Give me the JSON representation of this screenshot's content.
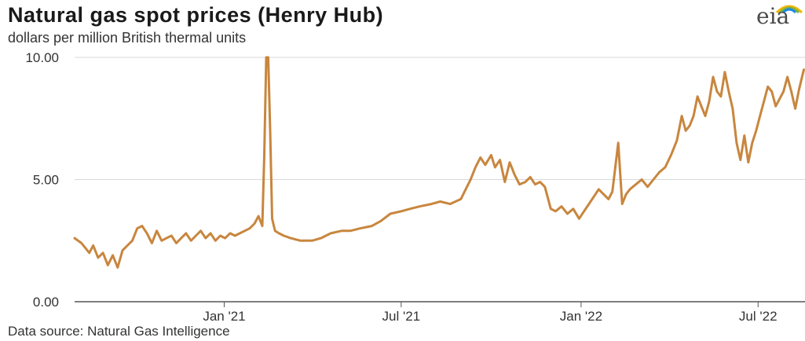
{
  "header": {
    "title": "Natural gas spot prices (Henry Hub)",
    "subtitle": "dollars per million British thermal units",
    "logo_text": "eia"
  },
  "footer": {
    "source": "Data source: Natural Gas Intelligence"
  },
  "colors": {
    "line": "#c8863e",
    "grid": "#d9d9d9",
    "axis": "#555555"
  },
  "chart_data": {
    "type": "line",
    "title": "Natural gas spot prices (Henry Hub)",
    "ylabel": "dollars per million British thermal units",
    "xlabel": "",
    "ylim": [
      0,
      10
    ],
    "xlim": [
      "2020-08-01",
      "2022-08-18"
    ],
    "y_ticks": [
      {
        "value": 0,
        "label": "0.00"
      },
      {
        "value": 5,
        "label": "5.00"
      },
      {
        "value": 10,
        "label": "10.00"
      }
    ],
    "x_ticks": [
      {
        "value": "2021-01-01",
        "label": "Jan '21"
      },
      {
        "value": "2021-07-01",
        "label": "Jul '21"
      },
      {
        "value": "2022-01-01",
        "label": "Jan '22"
      },
      {
        "value": "2022-07-01",
        "label": "Jul '22"
      }
    ],
    "grid": "horizontal",
    "series": [
      {
        "x": [
          "2020-08-01",
          "2020-08-08",
          "2020-08-12",
          "2020-08-16",
          "2020-08-20",
          "2020-08-25",
          "2020-08-30",
          "2020-09-04",
          "2020-09-09",
          "2020-09-14",
          "2020-09-19",
          "2020-09-24",
          "2020-09-29",
          "2020-10-04",
          "2020-10-09",
          "2020-10-14",
          "2020-10-19",
          "2020-10-24",
          "2020-10-29",
          "2020-11-03",
          "2020-11-08",
          "2020-11-13",
          "2020-11-18",
          "2020-11-23",
          "2020-11-28",
          "2020-12-03",
          "2020-12-08",
          "2020-12-13",
          "2020-12-18",
          "2020-12-23",
          "2020-12-28",
          "2021-01-02",
          "2021-01-07",
          "2021-01-12",
          "2021-01-17",
          "2021-01-22",
          "2021-01-27",
          "2021-02-01",
          "2021-02-05",
          "2021-02-09",
          "2021-02-11",
          "2021-02-13",
          "2021-02-15",
          "2021-02-17",
          "2021-02-19",
          "2021-02-22",
          "2021-02-26",
          "2021-03-03",
          "2021-03-10",
          "2021-03-20",
          "2021-04-01",
          "2021-04-10",
          "2021-04-20",
          "2021-05-01",
          "2021-05-10",
          "2021-05-20",
          "2021-06-01",
          "2021-06-10",
          "2021-06-20",
          "2021-07-01",
          "2021-07-10",
          "2021-07-20",
          "2021-08-01",
          "2021-08-10",
          "2021-08-20",
          "2021-08-31",
          "2021-09-05",
          "2021-09-10",
          "2021-09-15",
          "2021-09-20",
          "2021-09-25",
          "2021-10-01",
          "2021-10-05",
          "2021-10-10",
          "2021-10-15",
          "2021-10-20",
          "2021-10-25",
          "2021-10-30",
          "2021-11-05",
          "2021-11-10",
          "2021-11-15",
          "2021-11-20",
          "2021-11-25",
          "2021-12-01",
          "2021-12-06",
          "2021-12-12",
          "2021-12-18",
          "2021-12-24",
          "2021-12-30",
          "2022-01-04",
          "2022-01-09",
          "2022-01-14",
          "2022-01-19",
          "2022-01-24",
          "2022-01-29",
          "2022-02-02",
          "2022-02-08",
          "2022-02-12",
          "2022-02-16",
          "2022-02-20",
          "2022-02-26",
          "2022-03-04",
          "2022-03-10",
          "2022-03-16",
          "2022-03-22",
          "2022-03-28",
          "2022-04-03",
          "2022-04-09",
          "2022-04-14",
          "2022-04-18",
          "2022-04-22",
          "2022-04-26",
          "2022-04-30",
          "2022-05-04",
          "2022-05-08",
          "2022-05-12",
          "2022-05-16",
          "2022-05-20",
          "2022-05-24",
          "2022-05-28",
          "2022-06-01",
          "2022-06-05",
          "2022-06-09",
          "2022-06-13",
          "2022-06-17",
          "2022-06-21",
          "2022-06-25",
          "2022-06-29",
          "2022-07-03",
          "2022-07-07",
          "2022-07-11",
          "2022-07-15",
          "2022-07-19",
          "2022-07-23",
          "2022-07-27",
          "2022-07-31",
          "2022-08-04",
          "2022-08-08",
          "2022-08-12",
          "2022-08-18"
        ],
        "y": [
          2.6,
          2.4,
          2.2,
          2.0,
          2.3,
          1.8,
          2.0,
          1.5,
          1.9,
          1.4,
          2.1,
          2.3,
          2.5,
          3.0,
          3.1,
          2.8,
          2.4,
          2.9,
          2.5,
          2.6,
          2.7,
          2.4,
          2.6,
          2.8,
          2.5,
          2.7,
          2.9,
          2.6,
          2.8,
          2.5,
          2.7,
          2.6,
          2.8,
          2.7,
          2.8,
          2.9,
          3.0,
          3.2,
          3.5,
          3.1,
          6.0,
          10.0,
          10.0,
          7.0,
          3.4,
          2.9,
          2.8,
          2.7,
          2.6,
          2.5,
          2.5,
          2.6,
          2.8,
          2.9,
          2.9,
          3.0,
          3.1,
          3.3,
          3.6,
          3.7,
          3.8,
          3.9,
          4.0,
          4.1,
          4.0,
          4.2,
          4.6,
          5.0,
          5.5,
          5.9,
          5.6,
          6.0,
          5.5,
          5.8,
          4.9,
          5.7,
          5.2,
          4.8,
          4.9,
          5.1,
          4.8,
          4.9,
          4.7,
          3.8,
          3.7,
          3.9,
          3.6,
          3.8,
          3.4,
          3.7,
          4.0,
          4.3,
          4.6,
          4.4,
          4.2,
          4.5,
          6.5,
          4.0,
          4.4,
          4.6,
          4.8,
          5.0,
          4.7,
          5.0,
          5.3,
          5.5,
          6.0,
          6.6,
          7.6,
          7.0,
          7.2,
          7.6,
          8.4,
          8.0,
          7.6,
          8.2,
          9.2,
          8.6,
          8.4,
          9.4,
          8.6,
          7.9,
          6.5,
          5.8,
          6.8,
          5.7,
          6.5,
          7.0,
          7.6,
          8.2,
          8.8,
          8.6,
          8.0,
          8.3,
          8.6,
          9.2,
          8.6,
          7.9,
          8.7,
          9.5
        ]
      }
    ]
  }
}
